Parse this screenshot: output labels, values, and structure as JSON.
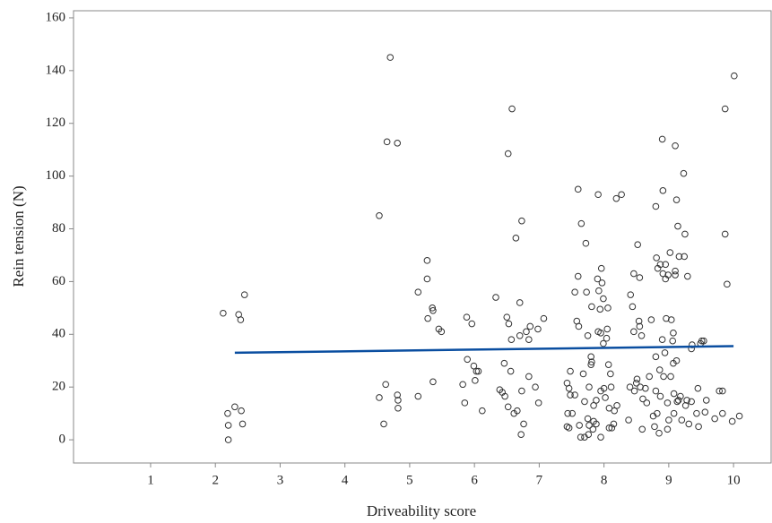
{
  "chart_data": {
    "type": "scatter",
    "x_label": "Driveability score",
    "y_label": "Rein tension (N)",
    "xlim": [
      -0.19,
      10.58
    ],
    "ylim": [
      -8.8,
      162.7
    ],
    "xticks": [
      1,
      2,
      3,
      4,
      5,
      6,
      7,
      8,
      9,
      10
    ],
    "yticks": [
      0,
      20,
      40,
      60,
      80,
      100,
      120,
      140,
      160
    ],
    "series": [
      {
        "color": "#333333",
        "x": [
          2.12,
          2.19,
          2.2,
          2.2,
          2.3,
          2.36,
          2.39,
          2.45,
          2.4,
          2.42,
          4.53,
          4.7,
          4.65,
          4.81,
          4.53,
          4.63,
          4.6,
          4.81,
          4.82,
          4.82,
          5.13,
          5.27,
          5.27,
          5.28,
          5.35,
          5.36,
          5.45,
          5.49,
          5.13,
          5.36,
          5.88,
          5.96,
          5.82,
          5.89,
          5.99,
          6.03,
          6.06,
          6.01,
          5.85,
          6.12,
          6.33,
          6.39,
          6.43,
          6.47,
          6.46,
          6.52,
          6.52,
          6.58,
          6.5,
          6.53,
          6.57,
          6.56,
          6.61,
          6.64,
          6.66,
          6.7,
          6.73,
          6.72,
          6.73,
          6.76,
          6.7,
          6.8,
          6.84,
          6.86,
          6.84,
          6.94,
          6.98,
          6.99,
          7.07,
          7.43,
          7.46,
          7.48,
          7.43,
          7.46,
          7.48,
          7.55,
          7.44,
          7.51,
          7.6,
          7.55,
          7.6,
          7.58,
          7.61,
          7.62,
          7.64,
          7.65,
          7.68,
          7.7,
          7.7,
          7.72,
          7.73,
          7.75,
          7.76,
          7.75,
          7.77,
          7.77,
          7.8,
          7.8,
          7.81,
          7.81,
          7.83,
          7.84,
          7.84,
          7.88,
          7.88,
          7.9,
          7.91,
          7.91,
          7.92,
          7.94,
          7.95,
          7.95,
          7.95,
          7.96,
          7.97,
          7.99,
          7.99,
          8.0,
          8.02,
          8.04,
          8.05,
          8.06,
          8.07,
          8.08,
          8.08,
          8.1,
          8.11,
          8.12,
          8.15,
          8.16,
          8.19,
          8.27,
          8.2,
          8.38,
          8.4,
          8.41,
          8.44,
          8.46,
          8.46,
          8.47,
          8.5,
          8.51,
          8.52,
          8.54,
          8.55,
          8.55,
          8.56,
          8.58,
          8.59,
          8.6,
          8.64,
          8.66,
          8.7,
          8.73,
          8.76,
          8.78,
          8.8,
          8.8,
          8.8,
          8.81,
          8.82,
          8.83,
          8.85,
          8.86,
          8.87,
          8.87,
          8.9,
          8.9,
          8.91,
          8.91,
          8.92,
          8.94,
          8.95,
          8.95,
          8.96,
          8.98,
          8.98,
          8.99,
          9.0,
          9.02,
          9.03,
          9.04,
          9.06,
          9.07,
          9.07,
          9.08,
          9.08,
          9.1,
          9.1,
          9.12,
          9.1,
          9.12,
          9.13,
          9.14,
          9.15,
          9.16,
          9.18,
          9.2,
          9.23,
          9.24,
          9.25,
          9.26,
          9.28,
          9.29,
          9.31,
          9.35,
          9.35,
          9.36,
          9.43,
          9.45,
          9.46,
          9.49,
          9.51,
          9.54,
          9.56,
          9.58,
          9.71,
          9.78,
          9.83,
          9.83,
          9.87,
          9.9,
          9.87,
          10.01,
          9.98,
          10.09
        ],
        "values": [
          48,
          10,
          5.5,
          0,
          12.5,
          47.5,
          45.5,
          55,
          11,
          6,
          85,
          145,
          113,
          112.5,
          16,
          21,
          6,
          17,
          15,
          12,
          56,
          68,
          61,
          46,
          50,
          49,
          42,
          41,
          16.5,
          22,
          46.5,
          44,
          21,
          30.5,
          28,
          26,
          26,
          22.5,
          14,
          11,
          54,
          19,
          18,
          16.5,
          29,
          12.5,
          108.5,
          125.5,
          46.5,
          44,
          38,
          26,
          10,
          76.5,
          11,
          39.5,
          83,
          2,
          18.5,
          6,
          52,
          41,
          38,
          43,
          24,
          20,
          42,
          14,
          46,
          21.5,
          19.5,
          26,
          5,
          4.5,
          17,
          17,
          10,
          10,
          95,
          56,
          62,
          45,
          43,
          5.5,
          1,
          82,
          25,
          14.5,
          1,
          74.5,
          56,
          39.5,
          2,
          8,
          20,
          5.5,
          31.5,
          28.5,
          29.5,
          50.5,
          4,
          13,
          7,
          15,
          6,
          61,
          41,
          93,
          56.5,
          49.5,
          40.5,
          18.5,
          1,
          65,
          59.5,
          53.5,
          36.5,
          19.5,
          16,
          38.5,
          42,
          50,
          28.5,
          12,
          4.5,
          25,
          20,
          4.5,
          6,
          11,
          91.5,
          93,
          13,
          7.5,
          20,
          55,
          50.5,
          41,
          63,
          18.5,
          21.5,
          23,
          74,
          45,
          43,
          61.5,
          20,
          39.5,
          4,
          15.5,
          19.5,
          14,
          24,
          45.5,
          9,
          5,
          18.5,
          88.5,
          31.5,
          69,
          10,
          65,
          2.5,
          26.5,
          66.5,
          16.5,
          114,
          38,
          94.5,
          63,
          24,
          33,
          61,
          66.5,
          46,
          14,
          4,
          62.5,
          7.5,
          71,
          24,
          45.5,
          37.5,
          40.5,
          29,
          17.5,
          10,
          64,
          62.5,
          91,
          111.5,
          30,
          14.5,
          81,
          15,
          69.5,
          16.5,
          7.5,
          101,
          69.5,
          78,
          13,
          15,
          62,
          6,
          14.5,
          34.5,
          36,
          10,
          19.5,
          5,
          36.5,
          37.5,
          37.5,
          10.5,
          15,
          8,
          18.5,
          18.5,
          10,
          78,
          59,
          125.5,
          138,
          7,
          9
        ]
      }
    ],
    "trend": {
      "color": "#0a4ea0",
      "x": [
        2.3,
        10.0
      ],
      "values": [
        33,
        35.5
      ]
    }
  }
}
